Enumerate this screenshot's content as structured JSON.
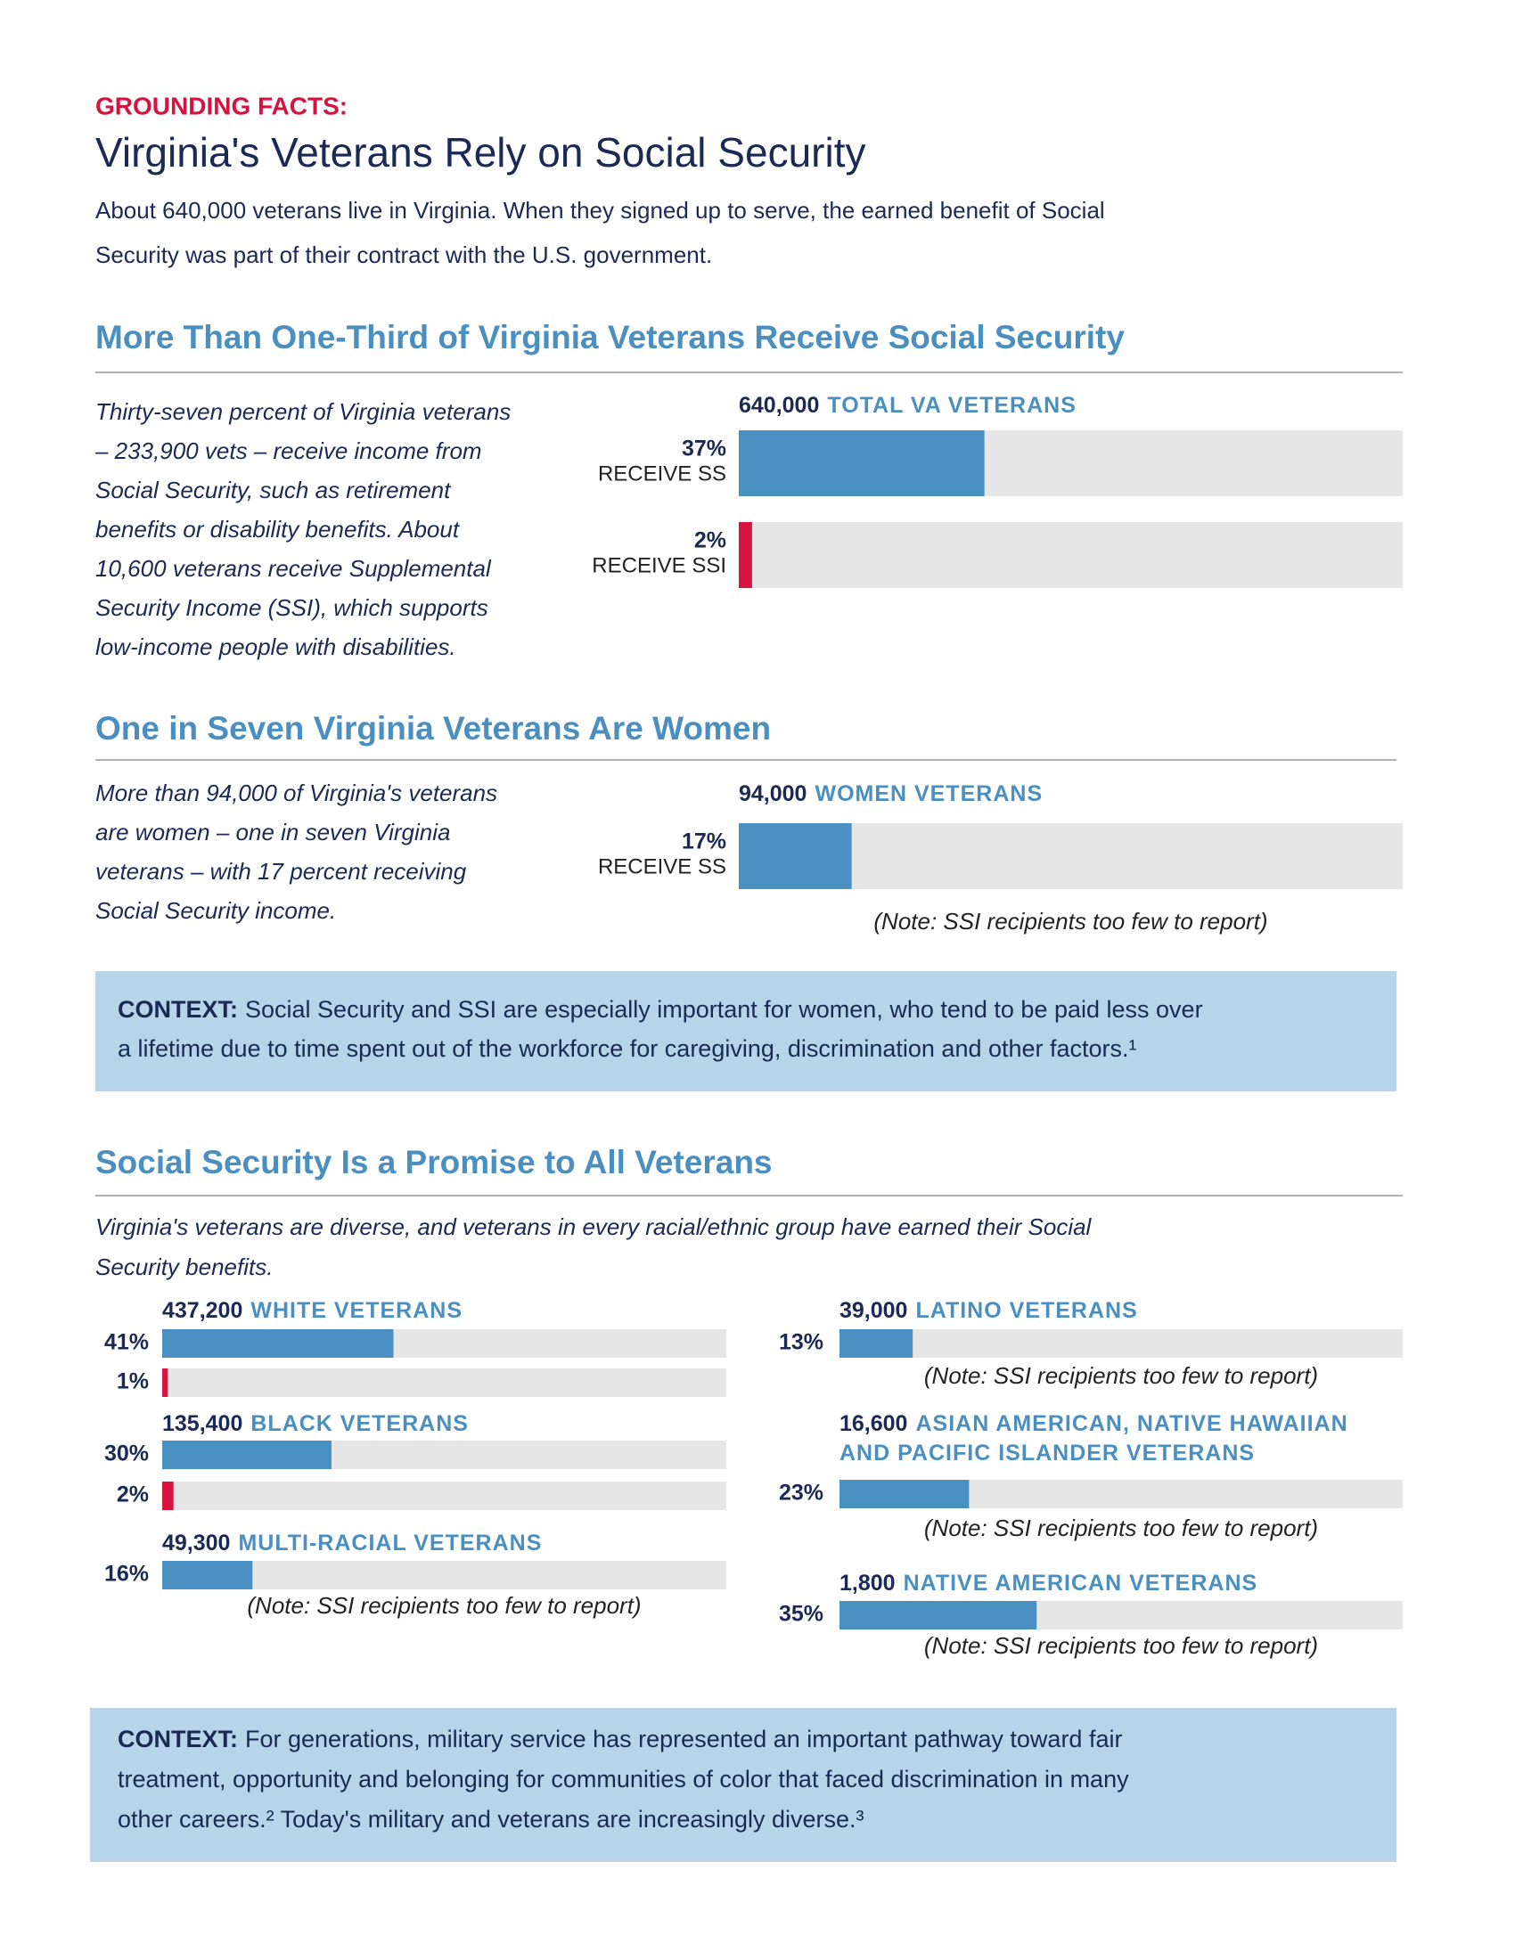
{
  "header": {
    "kicker": "GROUNDING FACTS:",
    "title": "Virginia's Veterans Rely on Social Security",
    "intro_lines": [
      "About 640,000 veterans live in Virginia. When they signed up to serve, the earned benefit of Social",
      "Security was part of their contract with the U.S. government."
    ]
  },
  "sections": [
    {
      "heading": "More Than One-Third of Virginia Veterans Receive Social Security",
      "text_lines": [
        "Thirty-seven percent of Virginia veterans",
        "– 233,900 vets – receive income from",
        "Social Security, such as retirement",
        "benefits or disability benefits. About",
        "10,600 veterans receive Supplemental",
        "Security Income (SSI), which supports",
        "low-income people with disabilities."
      ],
      "xlim": [
        0,
        100
      ],
      "groups": [
        {
          "count": "640,000",
          "label_lines": [
            "TOTAL VA VETERANS"
          ],
          "bars": [
            {
              "value": 37,
              "label": "37%",
              "caption": "RECEIVE SS",
              "color": "#4a90c2"
            },
            {
              "value": 2,
              "label": "2%",
              "caption": "RECEIVE SSI",
              "color": "#d6143f"
            }
          ]
        }
      ]
    },
    {
      "heading": "One in Seven Virginia Veterans Are Women",
      "text_lines": [
        "More than 94,000 of Virginia's veterans",
        "are women – one in seven Virginia",
        "veterans – with 17 percent receiving",
        "Social Security income."
      ],
      "xlim": [
        0,
        100
      ],
      "groups": [
        {
          "count": "94,000",
          "label_lines": [
            "WOMEN VETERANS"
          ],
          "bars": [
            {
              "value": 17,
              "label": "17%",
              "caption": "RECEIVE SS",
              "color": "#4a90c2"
            }
          ],
          "note": "(Note: SSI recipients too few to report)"
        }
      ]
    },
    {
      "heading": "Social Security Is a Promise to All Veterans",
      "text_lines": [
        "Virginia's veterans are diverse, and veterans in every racial/ethnic group have earned their Social",
        "Security benefits."
      ],
      "xlim": [
        0,
        100
      ],
      "groups": [
        {
          "count": "437,200",
          "label_lines": [
            "WHITE VETERANS"
          ],
          "bars": [
            {
              "value": 41,
              "label": "41%",
              "color": "#4a90c2"
            },
            {
              "value": 1,
              "label": "1%",
              "color": "#d6143f"
            }
          ]
        },
        {
          "count": "135,400",
          "label_lines": [
            "BLACK VETERANS"
          ],
          "bars": [
            {
              "value": 30,
              "label": "30%",
              "color": "#4a90c2"
            },
            {
              "value": 2,
              "label": "2%",
              "color": "#d6143f"
            }
          ]
        },
        {
          "count": "49,300",
          "label_lines": [
            "MULTI-RACIAL VETERANS"
          ],
          "bars": [
            {
              "value": 16,
              "label": "16%",
              "color": "#4a90c2"
            }
          ],
          "note": "(Note: SSI recipients too few to report)"
        },
        {
          "count": "39,000",
          "label_lines": [
            "LATINO VETERANS"
          ],
          "bars": [
            {
              "value": 13,
              "label": "13%",
              "color": "#4a90c2"
            }
          ],
          "note": "(Note: SSI recipients too few to report)"
        },
        {
          "count": "16,600",
          "label_lines": [
            "ASIAN AMERICAN, NATIVE HAWAIIAN",
            "AND PACIFIC ISLANDER VETERANS"
          ],
          "bars": [
            {
              "value": 23,
              "label": "23%",
              "color": "#4a90c2"
            }
          ],
          "note": "(Note: SSI recipients too few to report)"
        },
        {
          "count": "1,800",
          "label_lines": [
            "NATIVE AMERICAN VETERANS"
          ],
          "bars": [
            {
              "value": 35,
              "label": "35%",
              "color": "#4a90c2"
            }
          ],
          "note": "(Note: SSI recipients too few to report)"
        }
      ]
    }
  ],
  "context_boxes": [
    {
      "label": "CONTEXT:",
      "lines": [
        "Social Security and SSI are especially important for women, who tend to be paid less over",
        "a lifetime due to time spent out of the workforce for caregiving, discrimination and other factors.¹"
      ]
    },
    {
      "label": "CONTEXT:",
      "lines": [
        "For generations, military service has represented an important pathway toward fair",
        "treatment, opportunity and belonging for communities of color that faced discrimination in many",
        "other careers.² Today's military and veterans are increasingly diverse.³"
      ]
    }
  ]
}
